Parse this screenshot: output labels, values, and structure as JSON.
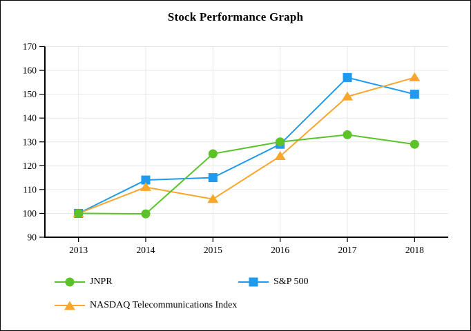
{
  "chart_data": {
    "type": "line",
    "title": "Stock Performance Graph",
    "categories": [
      "2013",
      "2014",
      "2015",
      "2016",
      "2017",
      "2018"
    ],
    "series": [
      {
        "name": "JNPR",
        "marker": "circle",
        "color": "#5BC228",
        "values": [
          100,
          99.8,
          125,
          130,
          133,
          129
        ]
      },
      {
        "name": "S&P 500",
        "marker": "square",
        "color": "#1E9AF0",
        "values": [
          100,
          114,
          115,
          129,
          157,
          150
        ]
      },
      {
        "name": "NASDAQ Telecommunications Index",
        "marker": "triangle",
        "color": "#F9A62C",
        "values": [
          100,
          111,
          106,
          124,
          149,
          157
        ]
      }
    ],
    "ylim": [
      90,
      170
    ],
    "ytick_step": 10,
    "grid": true,
    "legend_position": "bottom",
    "colors": {
      "grid": "#E7E7E7",
      "axis": "#000000",
      "text": "#000000",
      "background": "#FFFFFF"
    }
  }
}
